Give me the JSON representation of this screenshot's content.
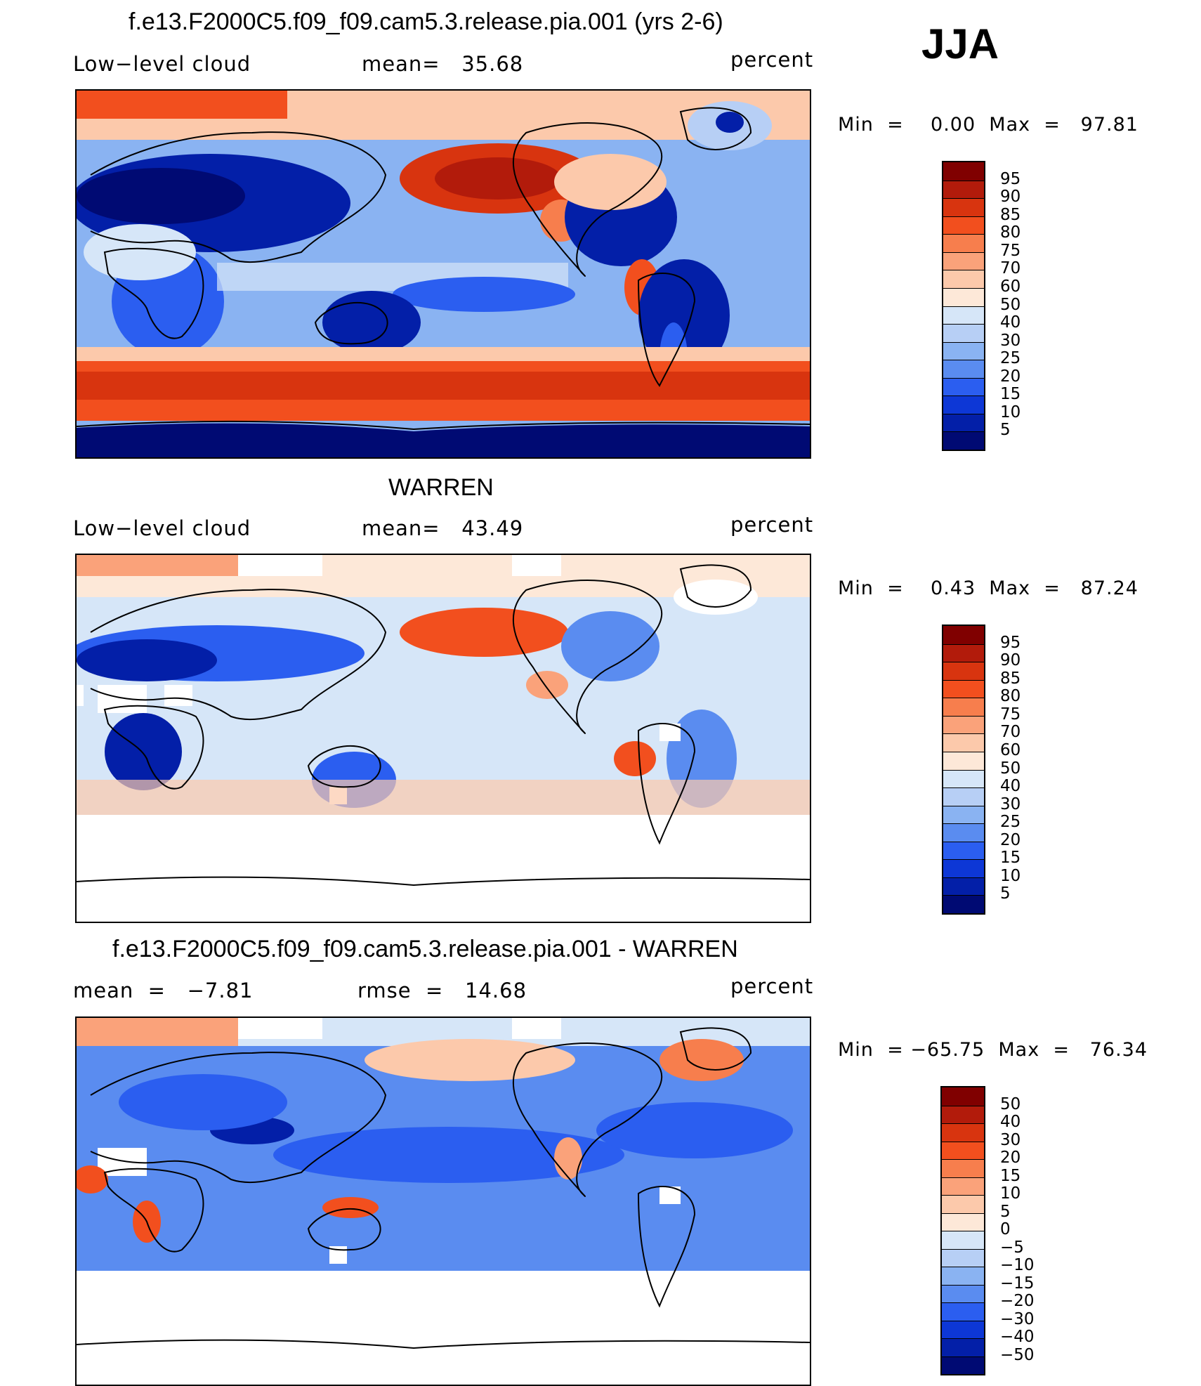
{
  "season": "JJA",
  "panels": [
    {
      "title": "f.e13.F2000C5.f09_f09.cam5.3.release.pia.001 (yrs 2-6)",
      "left_label": "Low−level cloud",
      "mid_label": "mean=   35.68",
      "right_label": "percent",
      "min_text": "Min  =    0.00  Max  =   97.81",
      "legend_labels": [
        "95",
        "90",
        "85",
        "80",
        "75",
        "70",
        "60",
        "50",
        "40",
        "30",
        "25",
        "20",
        "15",
        "10",
        "5"
      ],
      "legend_colors": [
        "#800000",
        "#b21b0b",
        "#d8340f",
        "#f24f1e",
        "#f77e4d",
        "#faa27a",
        "#fcc9ab",
        "#fde8d8",
        "#d6e6f8",
        "#b7cff5",
        "#8ab3f2",
        "#5a8cf0",
        "#2b5ef0",
        "#0d37d6",
        "#031fa8",
        "#000a73"
      ]
    },
    {
      "title": "WARREN",
      "left_label": "Low−level cloud",
      "mid_label": "mean=   43.49",
      "right_label": "percent",
      "min_text": "Min  =    0.43  Max  =   87.24",
      "legend_labels": [
        "95",
        "90",
        "85",
        "80",
        "75",
        "70",
        "60",
        "50",
        "40",
        "30",
        "25",
        "20",
        "15",
        "10",
        "5"
      ],
      "legend_colors": [
        "#800000",
        "#b21b0b",
        "#d8340f",
        "#f24f1e",
        "#f77e4d",
        "#faa27a",
        "#fcc9ab",
        "#fde8d8",
        "#d6e6f8",
        "#b7cff5",
        "#8ab3f2",
        "#5a8cf0",
        "#2b5ef0",
        "#0d37d6",
        "#031fa8",
        "#000a73"
      ]
    },
    {
      "title": "f.e13.F2000C5.f09_f09.cam5.3.release.pia.001 - WARREN",
      "left_label": "mean  =   −7.81",
      "mid_label": "rmse  =   14.68",
      "right_label": "percent",
      "min_text": "Min  = −65.75  Max  =   76.34",
      "legend_labels": [
        "50",
        "40",
        "30",
        "20",
        "15",
        "10",
        "5",
        "0",
        "−5",
        "−10",
        "−15",
        "−20",
        "−30",
        "−40",
        "−50"
      ],
      "legend_colors": [
        "#800000",
        "#b21b0b",
        "#d8340f",
        "#f24f1e",
        "#f77e4d",
        "#faa27a",
        "#fcc9ab",
        "#fde8d8",
        "#d6e6f8",
        "#b7cff5",
        "#8ab3f2",
        "#5a8cf0",
        "#2b5ef0",
        "#0d37d6",
        "#031fa8",
        "#000a73"
      ]
    }
  ]
}
